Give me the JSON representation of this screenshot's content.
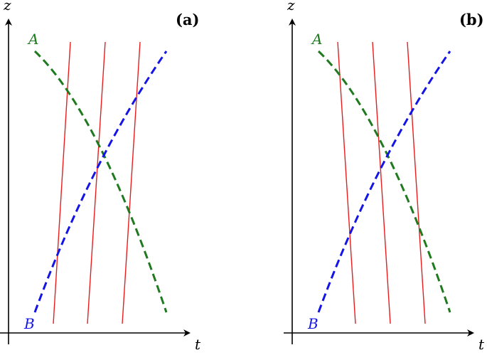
{
  "axes": {
    "vertical_label": "z",
    "horizontal_label": "t"
  },
  "curves": {
    "a_label": "A",
    "b_label": "B",
    "a_color": "#1f7a1f",
    "b_color": "#1414e6",
    "line_color": "#e61e1e",
    "a_style": "dashed",
    "b_style": "dashed"
  },
  "panels": [
    {
      "label": "(a)",
      "red_line_direction": "tilted-right"
    },
    {
      "label": "(b)",
      "red_line_direction": "tilted-left"
    }
  ]
}
